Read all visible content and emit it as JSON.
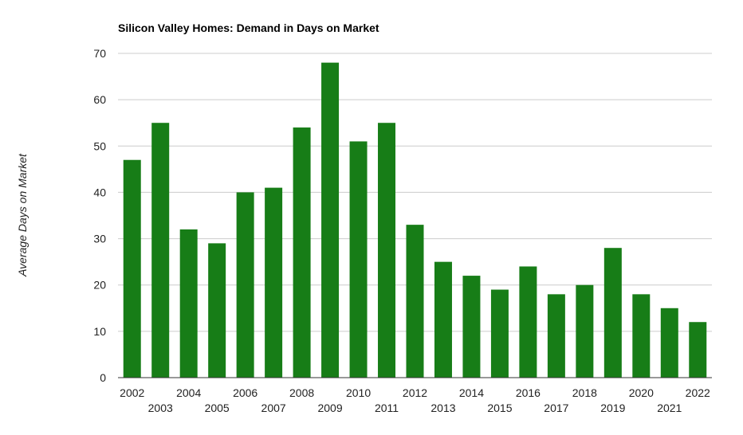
{
  "chart_data": {
    "type": "bar",
    "title": "Silicon Valley Homes: Demand in Days on Market",
    "xlabel": "",
    "ylabel": "Average Days on Market",
    "categories": [
      "2002",
      "2003",
      "2004",
      "2005",
      "2006",
      "2007",
      "2008",
      "2009",
      "2010",
      "2011",
      "2012",
      "2013",
      "2014",
      "2015",
      "2016",
      "2017",
      "2018",
      "2019",
      "2020",
      "2021",
      "2022"
    ],
    "values": [
      47,
      55,
      32,
      29,
      40,
      41,
      54,
      68,
      51,
      55,
      33,
      25,
      22,
      19,
      24,
      18,
      20,
      28,
      18,
      15,
      12
    ],
    "ylim": [
      0,
      70
    ],
    "yticks": [
      0,
      10,
      20,
      30,
      40,
      50,
      60,
      70
    ],
    "grid": true,
    "legend": "none",
    "bar_color": "#177d17",
    "grid_color": "#cccccc",
    "axis_color": "#333333"
  }
}
